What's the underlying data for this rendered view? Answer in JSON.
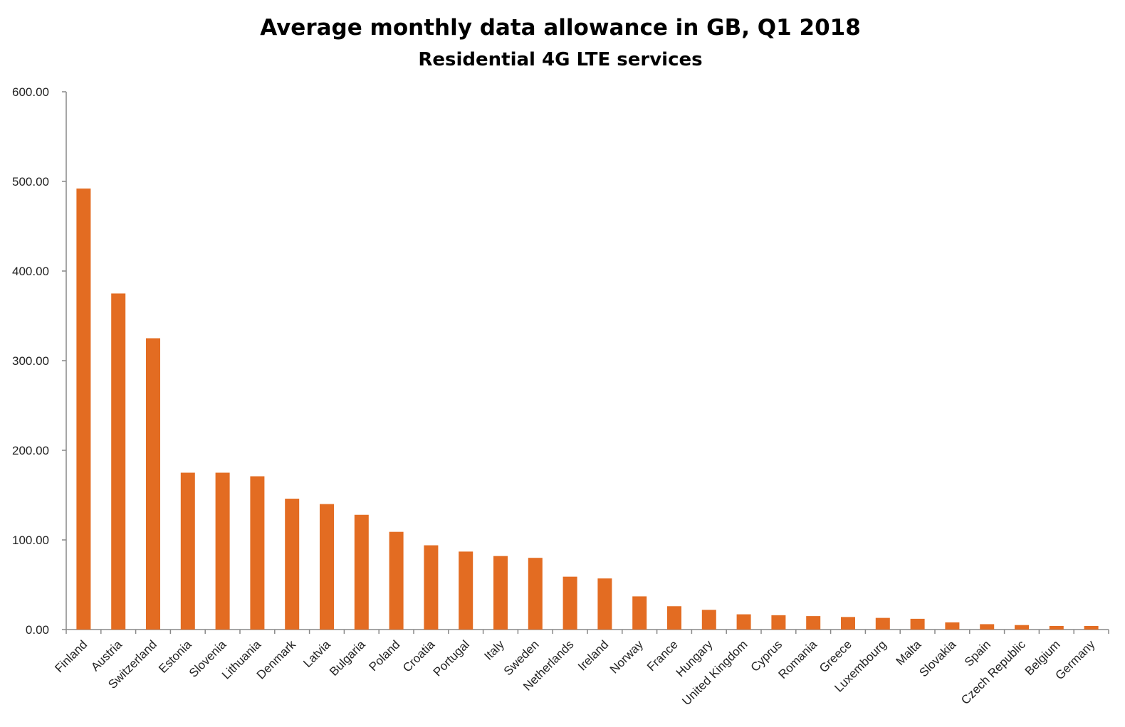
{
  "chart_data": {
    "type": "bar",
    "title": "Average monthly data allowance in GB, Q1 2018",
    "subtitle": "Residential 4G LTE services",
    "xlabel": "",
    "ylabel": "",
    "ylim": [
      0,
      600
    ],
    "yticks": [
      "0.00",
      "100.00",
      "200.00",
      "300.00",
      "400.00",
      "500.00",
      "600.00"
    ],
    "grid": false,
    "bar_color": "#E36C22",
    "categories": [
      "Finland",
      "Austria",
      "Switzerland",
      "Estonia",
      "Slovenia",
      "Lithuania",
      "Denmark",
      "Latvia",
      "Bulgaria",
      "Poland",
      "Croatia",
      "Portugal",
      "Italy",
      "Sweden",
      "Netherlands",
      "Ireland",
      "Norway",
      "France",
      "Hungary",
      "United Kingdom",
      "Cyprus",
      "Romania",
      "Greece",
      "Luxembourg",
      "Malta",
      "Slovakia",
      "Spain",
      "Czech Republic",
      "Belgium",
      "Germany"
    ],
    "values": [
      492,
      375,
      325,
      175,
      175,
      171,
      146,
      140,
      128,
      109,
      94,
      87,
      82,
      80,
      59,
      57,
      37,
      26,
      22,
      17,
      16,
      15,
      14,
      13,
      12,
      8,
      6,
      5,
      4,
      4
    ]
  }
}
